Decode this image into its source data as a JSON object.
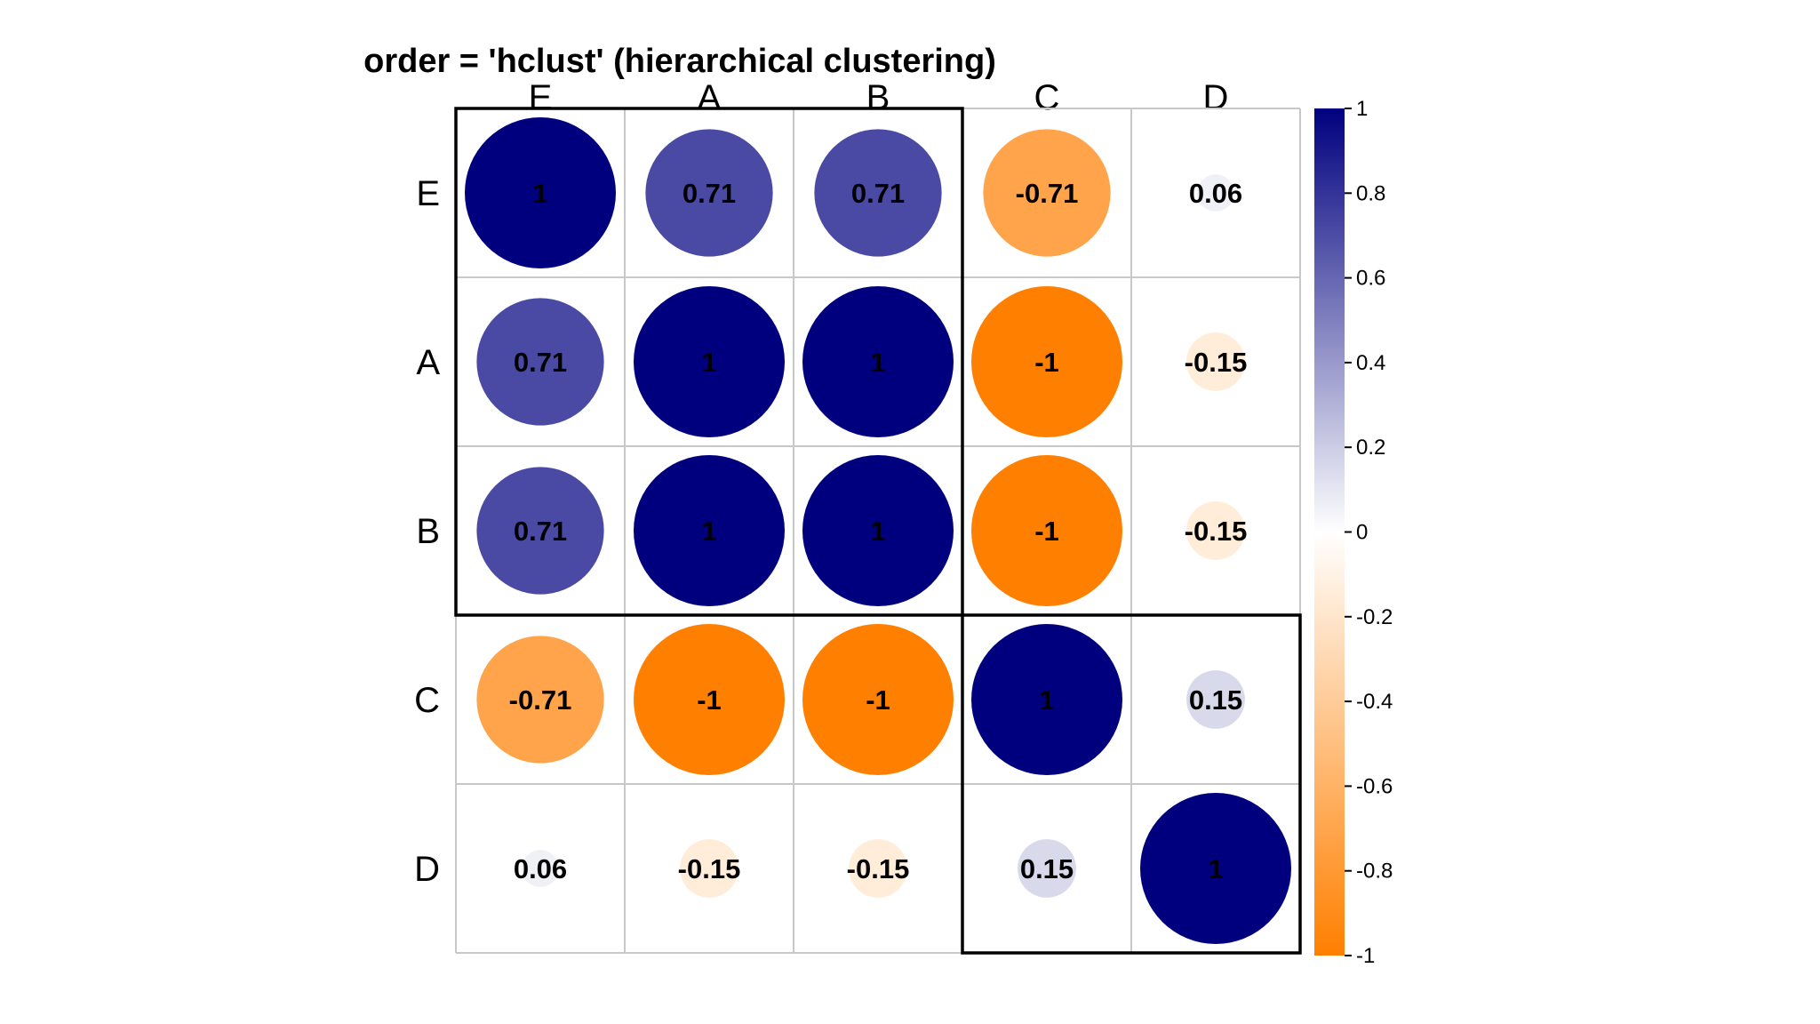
{
  "chart_data": {
    "type": "heatmap",
    "title": "order = 'hclust' (hierarchical clustering)",
    "variables": [
      "E",
      "A",
      "B",
      "C",
      "D"
    ],
    "matrix": [
      [
        1,
        0.71,
        0.71,
        -0.71,
        0.06
      ],
      [
        0.71,
        1,
        1,
        -1,
        -0.15
      ],
      [
        0.71,
        1,
        1,
        -1,
        -0.15
      ],
      [
        -0.71,
        -1,
        -1,
        1,
        0.15
      ],
      [
        0.06,
        -0.15,
        -0.15,
        0.15,
        1
      ]
    ],
    "labels": [
      [
        "1",
        "0.71",
        "0.71",
        "-0.71",
        "0.06"
      ],
      [
        "0.71",
        "1",
        "1",
        "-1",
        "-0.15"
      ],
      [
        "0.71",
        "1",
        "1",
        "-1",
        "-0.15"
      ],
      [
        "-0.71",
        "-1",
        "-1",
        "1",
        "0.15"
      ],
      [
        "0.06",
        "-0.15",
        "-0.15",
        "0.15",
        "1"
      ]
    ],
    "clusters": [
      {
        "members": [
          "E",
          "A",
          "B"
        ]
      },
      {
        "members": [
          "C",
          "D"
        ]
      }
    ],
    "color_scale": {
      "range": [
        -1,
        1
      ],
      "ticks": [
        1,
        0.8,
        0.6,
        0.4,
        0.2,
        0,
        -0.2,
        -0.4,
        -0.6,
        -0.8,
        -1
      ],
      "tick_labels": [
        "1",
        "0.8",
        "0.6",
        "0.4",
        "0.2",
        "0",
        "-0.2",
        "-0.4",
        "-0.6",
        "-0.8",
        "-1"
      ],
      "negative_color": "#ff7f00",
      "zero_color": "#ffffff",
      "positive_color": "#00007f"
    },
    "marker": "circle",
    "legend_position": "right",
    "grid": true
  }
}
